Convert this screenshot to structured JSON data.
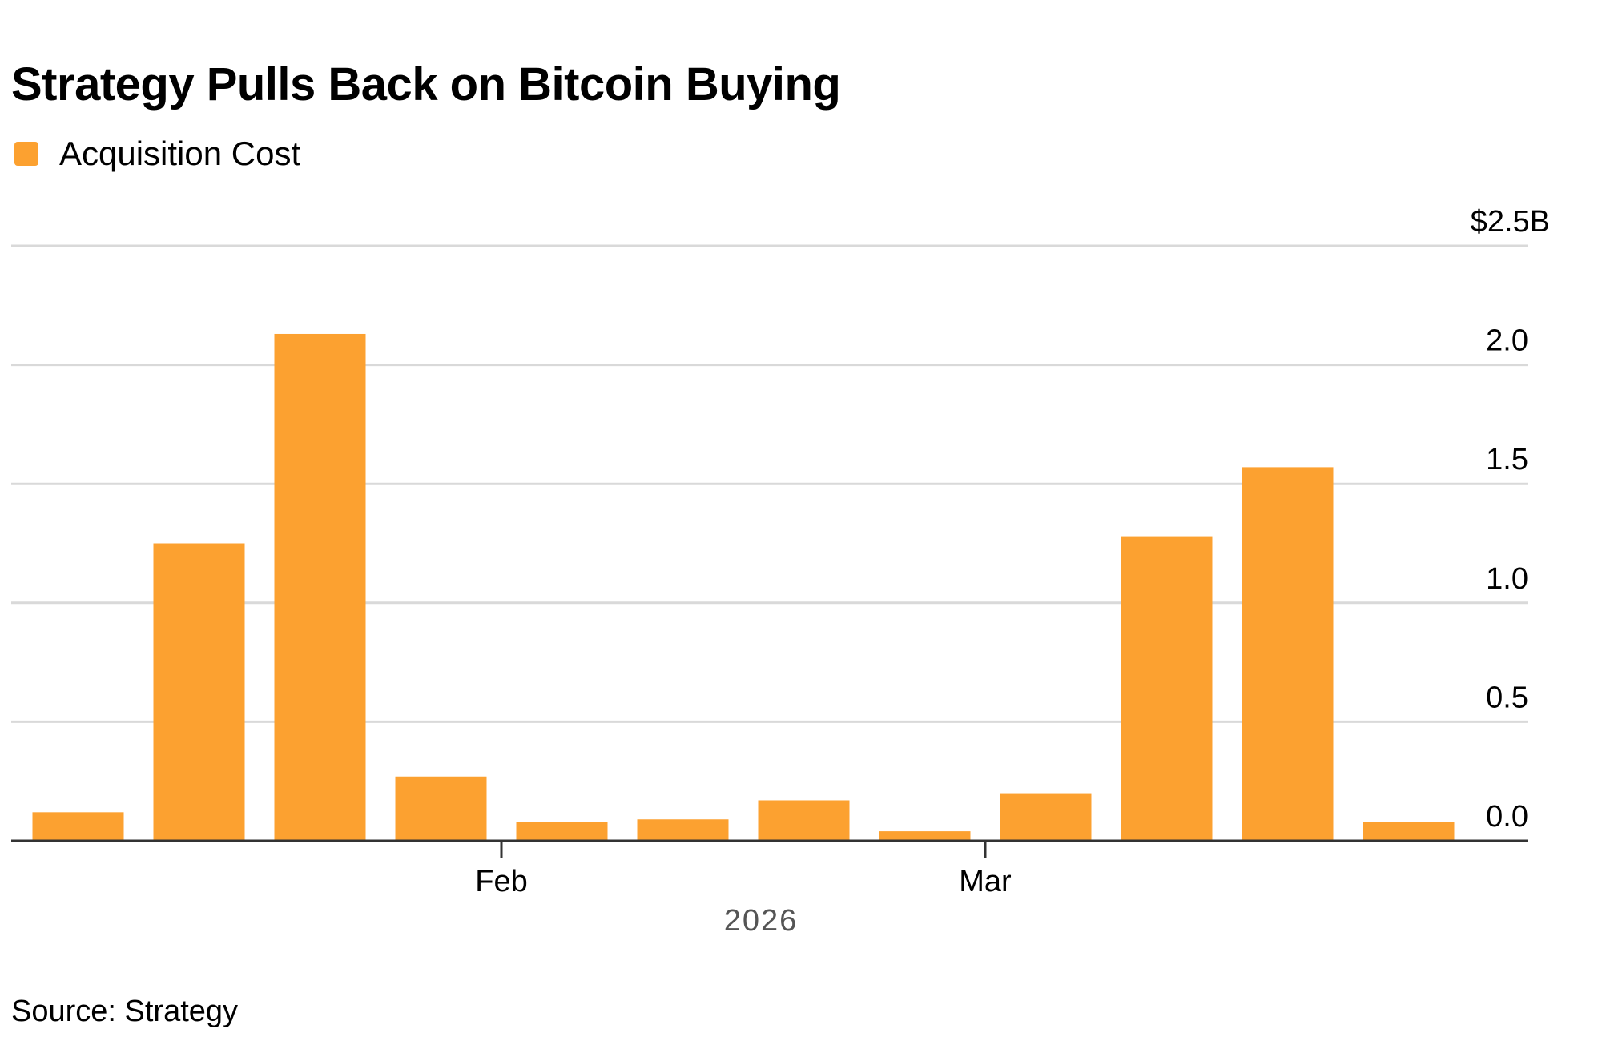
{
  "title": "Strategy Pulls Back on Bitcoin Buying",
  "source": "Source: Strategy",
  "colors": {
    "bar": "#FCA130",
    "grid": "#D9D9D9",
    "axis": "#333333",
    "year_label": "#555555"
  },
  "chart_data": {
    "type": "bar",
    "series": [
      {
        "name": "Acquisition Cost",
        "values": [
          0.12,
          1.25,
          2.13,
          0.27,
          0.08,
          0.09,
          0.17,
          0.04,
          0.2,
          1.28,
          1.57,
          0.08
        ]
      }
    ],
    "ylim": [
      0,
      2.5
    ],
    "yticks": [
      0,
      0.5,
      1.0,
      1.5,
      2.0,
      2.5
    ],
    "ytick_labels": [
      "0.0",
      "0.5",
      "1.0",
      "1.5",
      "2.0",
      "$2.5B"
    ],
    "xtick_labels": [
      {
        "label": "Feb",
        "after_bar_index": 3.5
      },
      {
        "label": "Mar",
        "after_bar_index": 7.5
      }
    ],
    "xlabel": "2026",
    "ylabel": "",
    "legend_position": "top-left",
    "grid": true
  }
}
